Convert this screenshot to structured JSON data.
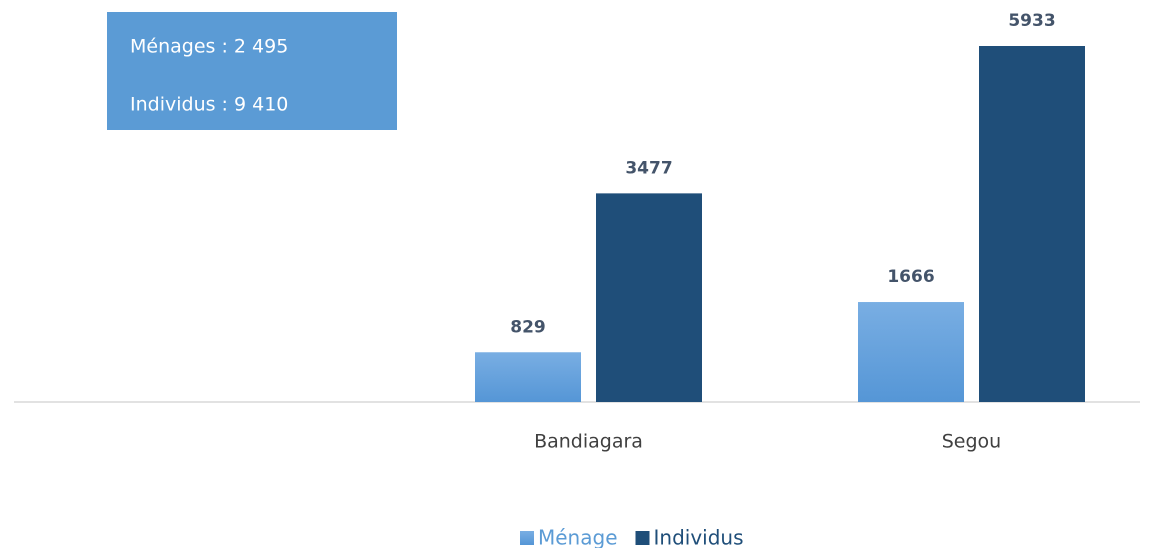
{
  "chart_data": {
    "type": "bar",
    "annotations": [
      "Ménages : 2 495",
      "Individus : 9 410"
    ],
    "categories": [
      null,
      "Bandiagara",
      "Segou"
    ],
    "series": [
      {
        "name": "Ménage",
        "color": "#6aa4dd",
        "values": [
          null,
          829,
          1666
        ]
      },
      {
        "name": "Individus",
        "color": "#1f4e79",
        "values": [
          null,
          3477,
          5933
        ]
      }
    ],
    "legend": "bottom"
  }
}
